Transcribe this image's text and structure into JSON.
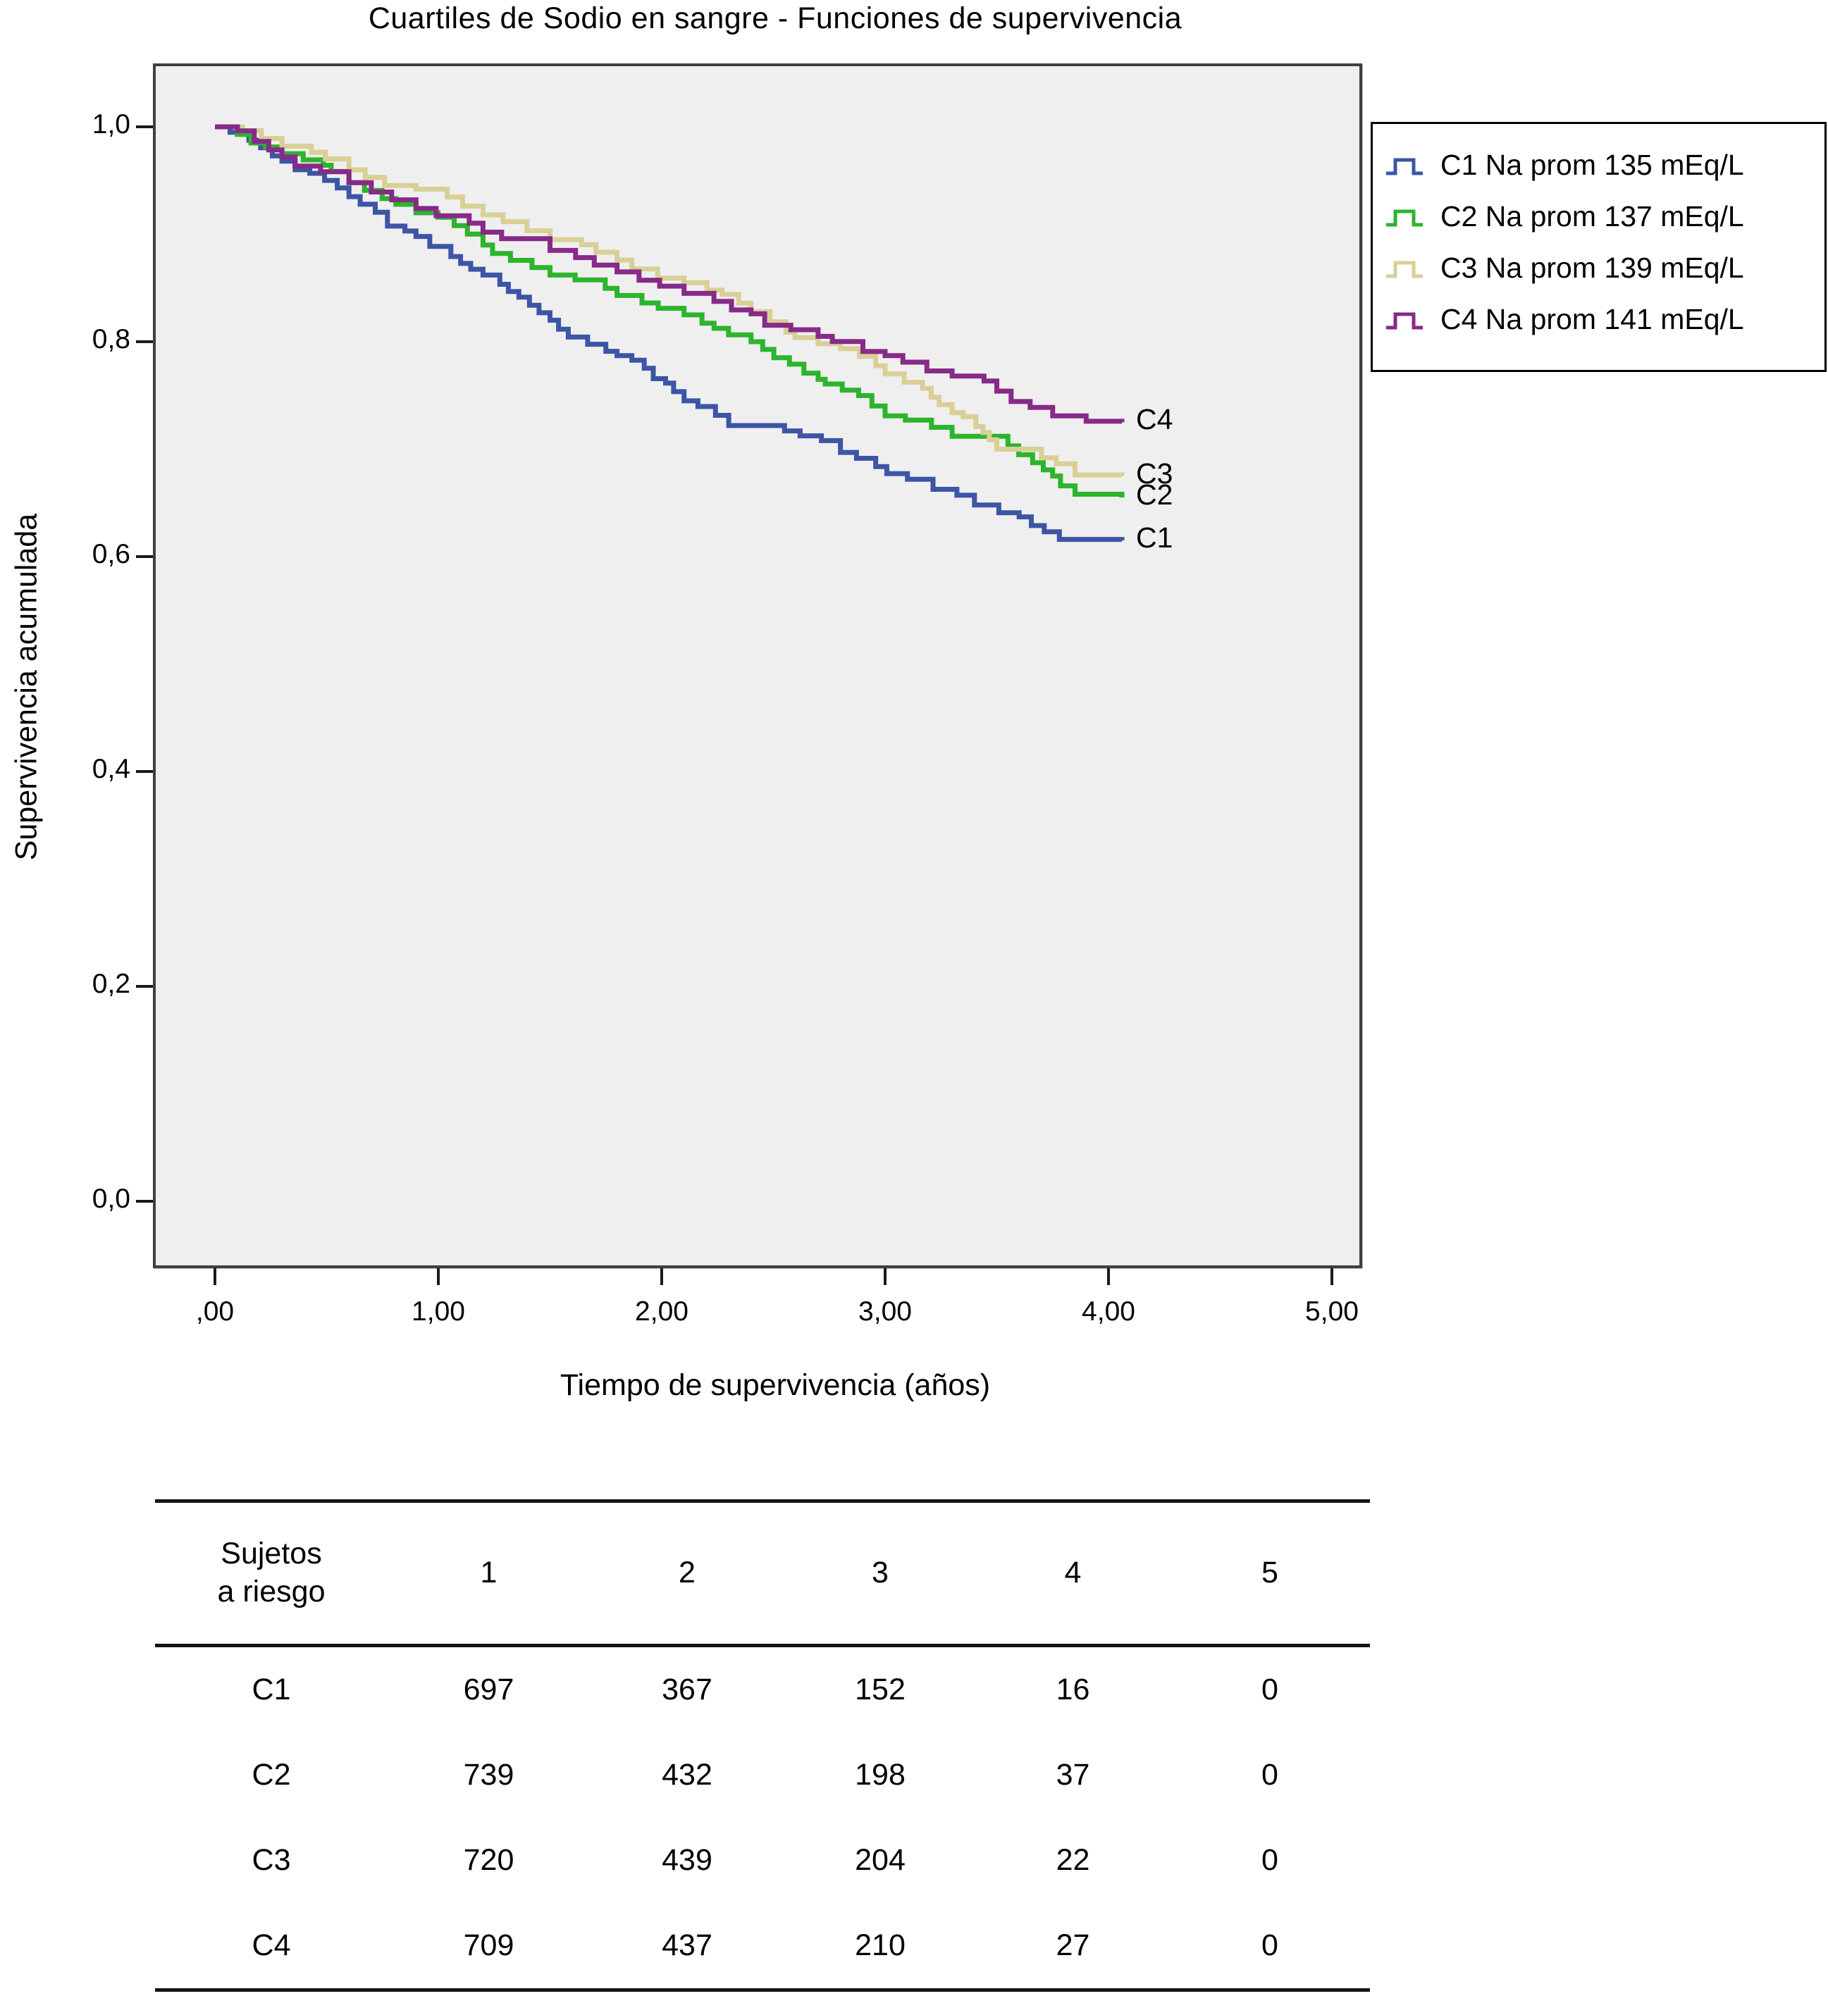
{
  "chart_data": {
    "type": "line",
    "variant": "kaplan-meier-step",
    "title": "Cuartiles de Sodio en sangre - Funciones de supervivencia",
    "xlabel": "Tiempo de supervivencia (años)",
    "ylabel": "Supervivencia acumulada",
    "xlim": [
      -0.27,
      5.12
    ],
    "ylim": [
      -0.06,
      1.06
    ],
    "grid": false,
    "plot_background": "#f0eff0",
    "legend_position": "outside-top-right",
    "xticks": [
      {
        "v": 0,
        "label": ",00"
      },
      {
        "v": 1,
        "label": "1,00"
      },
      {
        "v": 2,
        "label": "2,00"
      },
      {
        "v": 3,
        "label": "3,00"
      },
      {
        "v": 4,
        "label": "4,00"
      },
      {
        "v": 5,
        "label": "5,00"
      }
    ],
    "yticks": [
      {
        "v": 0.0,
        "label": "0,0"
      },
      {
        "v": 0.2,
        "label": "0,2"
      },
      {
        "v": 0.4,
        "label": "0,4"
      },
      {
        "v": 0.6,
        "label": "0,6"
      },
      {
        "v": 0.8,
        "label": "0,8"
      },
      {
        "v": 1.0,
        "label": "1,0"
      }
    ],
    "series": [
      {
        "name": "C1 Na prom 135 mEq/L",
        "label": "C1",
        "color": "#3c55a5",
        "points": [
          [
            0,
            1.0
          ],
          [
            0.3,
            0.968
          ],
          [
            0.6,
            0.935
          ],
          [
            0.9,
            0.898
          ],
          [
            1.2,
            0.862
          ],
          [
            1.5,
            0.82
          ],
          [
            1.8,
            0.787
          ],
          [
            2.1,
            0.745
          ],
          [
            2.3,
            0.722
          ],
          [
            2.55,
            0.717
          ],
          [
            2.8,
            0.697
          ],
          [
            3.1,
            0.672
          ],
          [
            3.4,
            0.648
          ],
          [
            3.6,
            0.637
          ],
          [
            3.78,
            0.616
          ],
          [
            4.06,
            0.615
          ]
        ]
      },
      {
        "name": "C2 Na prom 137 mEq/L",
        "label": "C2",
        "color": "#2db42d",
        "points": [
          [
            0,
            1.0
          ],
          [
            0.3,
            0.975
          ],
          [
            0.6,
            0.948
          ],
          [
            0.9,
            0.92
          ],
          [
            1.2,
            0.89
          ],
          [
            1.5,
            0.862
          ],
          [
            1.8,
            0.843
          ],
          [
            2.1,
            0.825
          ],
          [
            2.4,
            0.8
          ],
          [
            2.7,
            0.765
          ],
          [
            3.0,
            0.731
          ],
          [
            3.3,
            0.712
          ],
          [
            3.55,
            0.703
          ],
          [
            3.75,
            0.675
          ],
          [
            3.85,
            0.658
          ],
          [
            4.06,
            0.655
          ]
        ]
      },
      {
        "name": "C3 Na prom 139 mEq/L",
        "label": "C3",
        "color": "#d8d096",
        "points": [
          [
            0,
            1.0
          ],
          [
            0.3,
            0.982
          ],
          [
            0.6,
            0.96
          ],
          [
            0.9,
            0.942
          ],
          [
            1.2,
            0.918
          ],
          [
            1.5,
            0.895
          ],
          [
            1.8,
            0.876
          ],
          [
            2.1,
            0.855
          ],
          [
            2.4,
            0.828
          ],
          [
            2.7,
            0.798
          ],
          [
            3.0,
            0.77
          ],
          [
            3.3,
            0.734
          ],
          [
            3.5,
            0.7
          ],
          [
            3.7,
            0.692
          ],
          [
            3.85,
            0.676
          ],
          [
            4.06,
            0.675
          ]
        ]
      },
      {
        "name": "C4 Na prom 141 mEq/L",
        "label": "C4",
        "color": "#872a88",
        "points": [
          [
            0,
            1.0
          ],
          [
            0.3,
            0.972
          ],
          [
            0.6,
            0.948
          ],
          [
            0.9,
            0.924
          ],
          [
            1.2,
            0.902
          ],
          [
            1.5,
            0.885
          ],
          [
            1.8,
            0.865
          ],
          [
            2.1,
            0.845
          ],
          [
            2.4,
            0.826
          ],
          [
            2.7,
            0.805
          ],
          [
            3.0,
            0.787
          ],
          [
            3.3,
            0.768
          ],
          [
            3.5,
            0.754
          ],
          [
            3.75,
            0.731
          ],
          [
            3.9,
            0.726
          ],
          [
            4.06,
            0.725
          ]
        ]
      }
    ]
  },
  "risk_table": {
    "header_lines": [
      "Sujetos",
      "a riesgo"
    ],
    "time_columns": [
      "1",
      "2",
      "3",
      "4",
      "5"
    ],
    "rows": [
      {
        "label": "C1",
        "values": [
          "697",
          "367",
          "152",
          "16",
          "0"
        ]
      },
      {
        "label": "C2",
        "values": [
          "739",
          "432",
          "198",
          "37",
          "0"
        ]
      },
      {
        "label": "C3",
        "values": [
          "720",
          "439",
          "204",
          "22",
          "0"
        ]
      },
      {
        "label": "C4",
        "values": [
          "709",
          "437",
          "210",
          "27",
          "0"
        ]
      }
    ]
  }
}
